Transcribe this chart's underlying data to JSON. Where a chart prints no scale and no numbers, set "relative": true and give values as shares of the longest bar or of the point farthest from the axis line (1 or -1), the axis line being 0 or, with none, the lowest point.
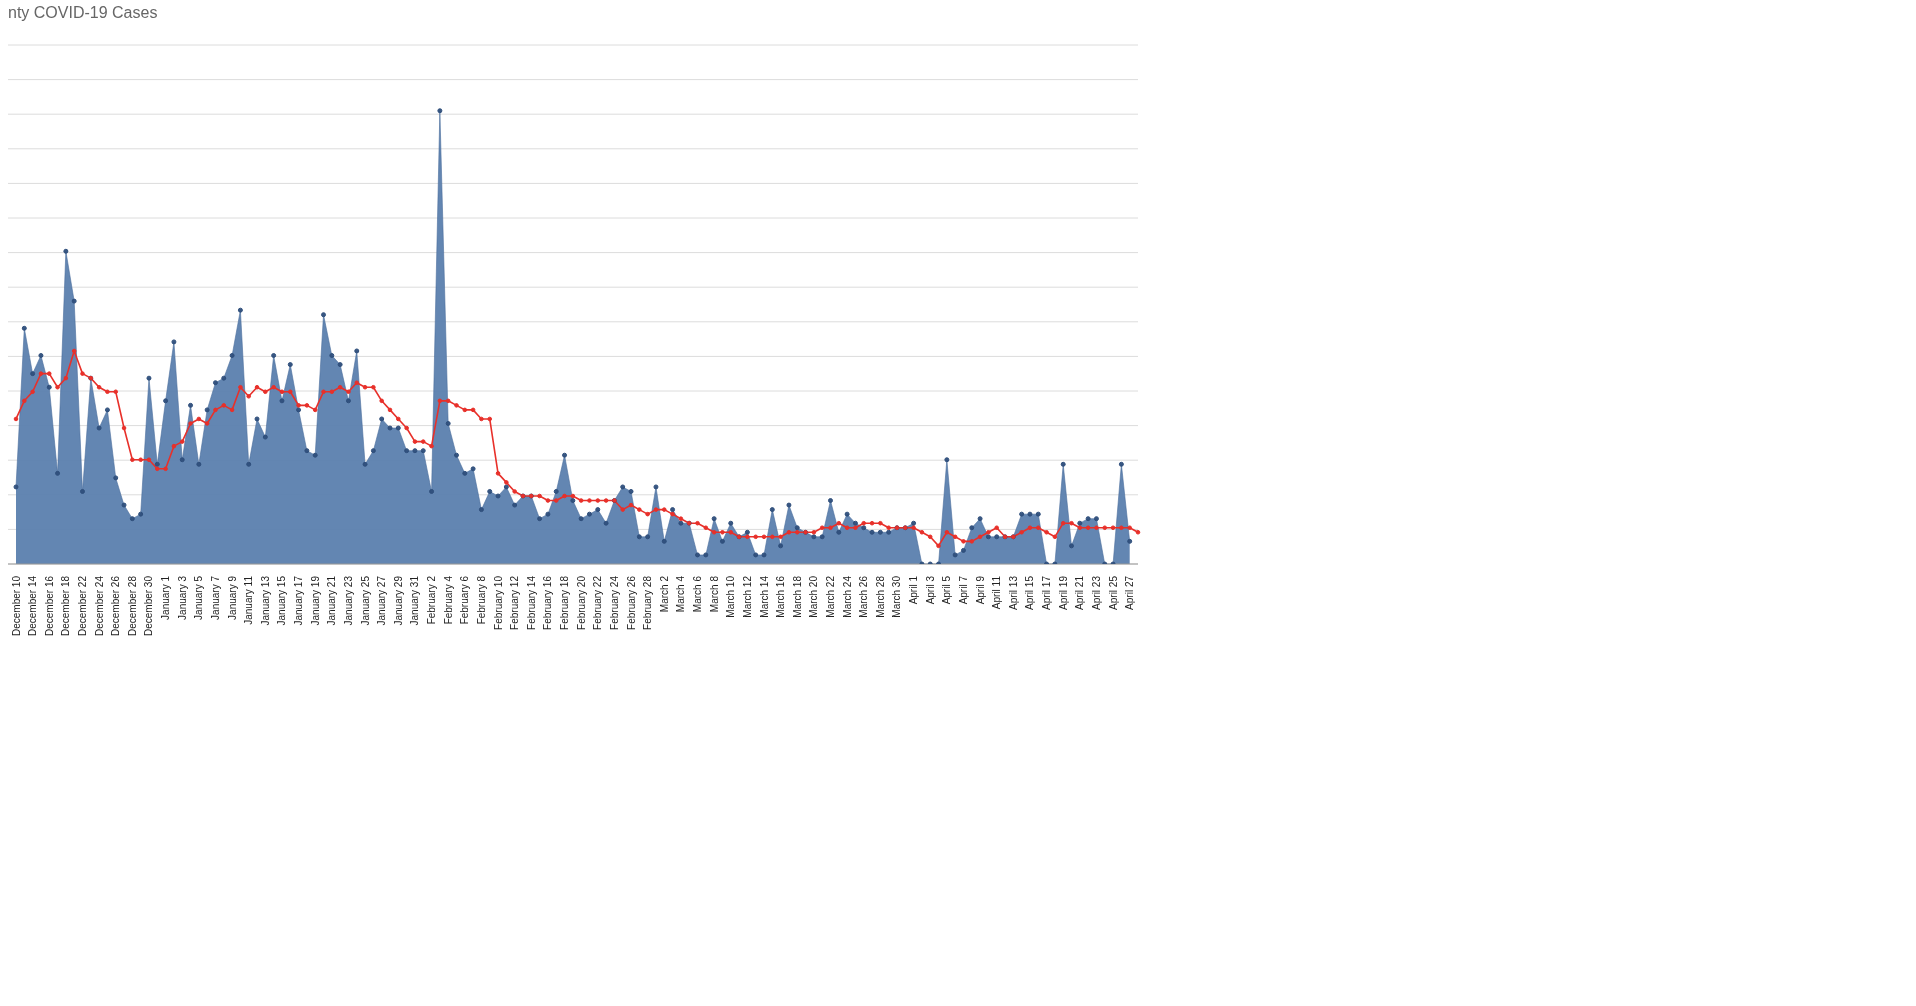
{
  "chart_data": {
    "type": "area",
    "title": "nty COVID-19 Cases",
    "relative": true,
    "grid": "y",
    "marker": "circle",
    "categories": [
      "December 10",
      null,
      "December 14",
      null,
      "December 16",
      null,
      "December 18",
      null,
      "December 22",
      null,
      "December 24",
      null,
      "December 26",
      null,
      "December 28",
      null,
      "December 30",
      null,
      "January 1",
      null,
      "January 3",
      null,
      "January 5",
      null,
      "January 7",
      null,
      "January 9",
      null,
      "January 11",
      null,
      "January 13",
      null,
      "January 15",
      null,
      "January 17",
      null,
      "January 19",
      null,
      "January 21",
      null,
      "January 23",
      null,
      "January 25",
      null,
      "January 27",
      null,
      "January 29",
      null,
      "January 31",
      null,
      "February 2",
      null,
      "February 4",
      null,
      "February 6",
      null,
      "February 8",
      null,
      "February 10",
      null,
      "February 12",
      null,
      "February 14",
      null,
      "February 16",
      null,
      "February 18",
      null,
      "February 20",
      null,
      "February 22",
      null,
      "February 24",
      null,
      "February 26",
      null,
      "February 28",
      null,
      "March 2",
      null,
      "March 4",
      null,
      "March 6",
      null,
      "March 8",
      null,
      "March 10",
      null,
      "March 12",
      null,
      "March 14",
      null,
      "March 16",
      null,
      "March 18",
      null,
      "March 20",
      null,
      "March 22",
      null,
      "March 24",
      null,
      "March 26",
      null,
      "March 28",
      null,
      "March 30",
      null,
      "April 1",
      null,
      "April 3",
      null,
      "April 5",
      null,
      "April 7",
      null,
      "April 9",
      null,
      "April 11",
      null,
      "April 13",
      null,
      "April 15",
      null,
      "April 17",
      null,
      "April 19",
      null,
      "April 21",
      null,
      "April 23",
      null,
      "April 25",
      null,
      "April 27",
      null
    ],
    "series": [
      {
        "color": "#5b7fae",
        "values": [
          0.17,
          0.52,
          0.42,
          0.46,
          0.39,
          0.2,
          0.69,
          0.58,
          0.16,
          0.41,
          0.3,
          0.34,
          0.19,
          0.13,
          0.1,
          0.11,
          0.41,
          0.22,
          0.36,
          0.49,
          0.23,
          0.35,
          0.22,
          0.34,
          0.4,
          0.41,
          0.46,
          0.56,
          0.22,
          0.32,
          0.28,
          0.46,
          0.36,
          0.44,
          0.34,
          0.25,
          0.24,
          0.55,
          0.46,
          0.44,
          0.36,
          0.47,
          0.22,
          0.25,
          0.32,
          0.3,
          0.3,
          0.25,
          0.25,
          0.25,
          0.16,
          1,
          0.31,
          0.24,
          0.2,
          0.21,
          0.12,
          0.16,
          0.15,
          0.17,
          0.13,
          0.15,
          0.15,
          0.1,
          0.11,
          0.16,
          0.24,
          0.14,
          0.1,
          0.11,
          0.12,
          0.09,
          0.14,
          0.17,
          0.16,
          0.06,
          0.06,
          0.17,
          0.05,
          0.12,
          0.09,
          0.09,
          0.02,
          0.02,
          0.1,
          0.05,
          0.09,
          0.06,
          0.07,
          0.02,
          0.02,
          0.12,
          0.04,
          0.13,
          0.08,
          0.07,
          0.06,
          0.06,
          0.14,
          0.07,
          0.11,
          0.09,
          0.08,
          0.07,
          0.07,
          0.07,
          0.08,
          0.08,
          0.09,
          0,
          0,
          0,
          0.23,
          0.02,
          0.03,
          0.08,
          0.1,
          0.06,
          0.06,
          0.06,
          0.06,
          0.11,
          0.11,
          0.11,
          0,
          0,
          0.22,
          0.04,
          0.09,
          0.1,
          0.1,
          0,
          0,
          0.22,
          0.05,
          null
        ]
      },
      {
        "type": "line",
        "color": "#e8302a",
        "values": [
          0.32,
          0.36,
          0.38,
          0.42,
          0.42,
          0.39,
          0.41,
          0.47,
          0.42,
          0.41,
          0.39,
          0.38,
          0.38,
          0.3,
          0.23,
          0.23,
          0.23,
          0.21,
          0.21,
          0.26,
          0.27,
          0.31,
          0.32,
          0.31,
          0.34,
          0.35,
          0.34,
          0.39,
          0.37,
          0.39,
          0.38,
          0.39,
          0.38,
          0.38,
          0.35,
          0.35,
          0.34,
          0.38,
          0.38,
          0.39,
          0.38,
          0.4,
          0.39,
          0.39,
          0.36,
          0.34,
          0.32,
          0.3,
          0.27,
          0.27,
          0.26,
          0.36,
          0.36,
          0.35,
          0.34,
          0.34,
          0.32,
          0.32,
          0.2,
          0.18,
          0.16,
          0.15,
          0.15,
          0.15,
          0.14,
          0.14,
          0.15,
          0.15,
          0.14,
          0.14,
          0.14,
          0.14,
          0.14,
          0.12,
          0.13,
          0.12,
          0.11,
          0.12,
          0.12,
          0.11,
          0.1,
          0.09,
          0.09,
          0.08,
          0.07,
          0.07,
          0.07,
          0.06,
          0.06,
          0.06,
          0.06,
          0.06,
          0.06,
          0.07,
          0.07,
          0.07,
          0.07,
          0.08,
          0.08,
          0.09,
          0.08,
          0.08,
          0.09,
          0.09,
          0.09,
          0.08,
          0.08,
          0.08,
          0.08,
          0.07,
          0.06,
          0.04,
          0.07,
          0.06,
          0.05,
          0.05,
          0.06,
          0.07,
          0.08,
          0.06,
          0.06,
          0.07,
          0.08,
          0.08,
          0.07,
          0.06,
          0.09,
          0.09,
          0.08,
          0.08,
          0.08,
          0.08,
          0.08,
          0.08,
          0.08,
          0.07
        ]
      }
    ]
  }
}
